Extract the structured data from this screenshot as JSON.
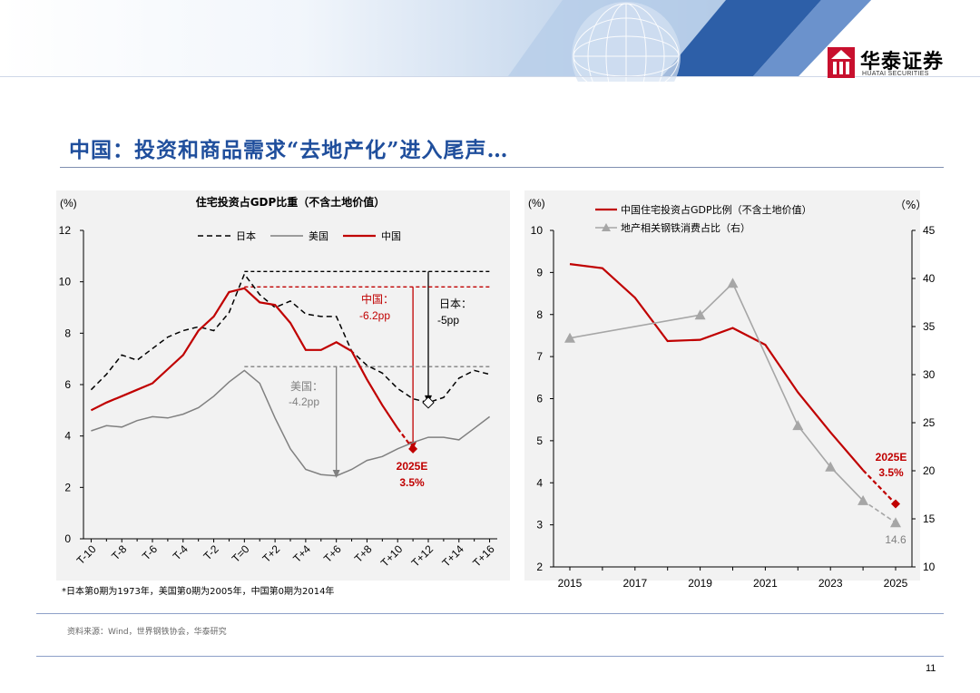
{
  "header": {
    "logo_name": "华泰证券",
    "logo_sub": "HUATAI SECURITIES",
    "brand_color": "#c8102e"
  },
  "title": "中国：投资和商品需求“去地产化”进入尾声…",
  "footnote": "*日本第0期为1973年，美国第0期为2005年，中国第0期为2014年",
  "source": "资料来源：Wind，世界钢铁协会，华泰研究",
  "page_number": "11",
  "chart_data": [
    {
      "type": "line",
      "title": "住宅投资占GDP比重（不含土地价值）",
      "ylabel": "(%)",
      "ylim": [
        0,
        12
      ],
      "yticks": [
        "0",
        "2",
        "4",
        "6",
        "8",
        "10",
        "12"
      ],
      "xticks": [
        "T-10",
        "T-8",
        "T-6",
        "T-4",
        "T-2",
        "T=0",
        "T+2",
        "T+4",
        "T+6",
        "T+8",
        "T+10",
        "T+12",
        "T+14",
        "T+16"
      ],
      "x": [
        -10,
        -9,
        -8,
        -7,
        -6,
        -5,
        -4,
        -3,
        -2,
        -1,
        0,
        1,
        2,
        3,
        4,
        5,
        6,
        7,
        8,
        9,
        10,
        11,
        12,
        13,
        14,
        15,
        16
      ],
      "legend": [
        "日本",
        "美国",
        "中国"
      ],
      "series": [
        {
          "name": "日本",
          "color": "#000000",
          "style": "dashed",
          "values": [
            5.8,
            6.4,
            7.15,
            6.95,
            7.4,
            7.85,
            8.1,
            8.25,
            8.1,
            8.8,
            10.3,
            9.5,
            9.0,
            9.25,
            8.75,
            8.65,
            8.65,
            7.3,
            6.75,
            6.45,
            5.85,
            5.45,
            5.3,
            5.5,
            6.25,
            6.55,
            6.4
          ]
        },
        {
          "name": "美国",
          "color": "#808080",
          "style": "solid",
          "values": [
            4.2,
            4.4,
            4.35,
            4.6,
            4.75,
            4.7,
            4.85,
            5.1,
            5.55,
            6.1,
            6.55,
            6.05,
            4.7,
            3.5,
            2.7,
            2.5,
            2.45,
            2.7,
            3.05,
            3.2,
            3.5,
            3.75,
            3.95,
            3.95,
            3.85,
            4.3,
            4.75
          ]
        },
        {
          "name": "中国",
          "color": "#c00000",
          "style": "solid",
          "values": [
            5.0,
            5.3,
            5.55,
            5.8,
            6.05,
            6.6,
            7.15,
            8.1,
            8.65,
            9.6,
            9.75,
            9.2,
            9.1,
            8.4,
            7.35,
            7.35,
            7.65,
            7.3,
            6.2,
            5.2,
            4.3,
            null,
            null,
            null,
            null,
            null,
            null
          ]
        }
      ],
      "forecast": {
        "from": [
          10,
          4.3
        ],
        "to": [
          11,
          3.5
        ],
        "color": "#c00000"
      },
      "reference_lines": [
        {
          "series": "日本",
          "from_x": 0,
          "peak": 10.4,
          "trough": 5.3,
          "trough_x": 12
        },
        {
          "series": "中国",
          "from_x": 0,
          "peak": 9.8,
          "trough": 3.5,
          "trough_x": 11
        },
        {
          "series": "美国",
          "from_x": 0,
          "peak": 6.7,
          "trough": 2.4,
          "trough_x": 6
        }
      ],
      "annotations": {
        "china_label": "中国：",
        "china_value": "-6.2pp",
        "japan_label": "日本：",
        "japan_value": "-5pp",
        "us_label": "美国：",
        "us_value": "-4.2pp",
        "forecast_label": "2025E",
        "forecast_value": "3.5%"
      }
    },
    {
      "type": "line",
      "ylabel_left": "(%)",
      "ylabel_right": "（%）",
      "ylim_left": [
        2,
        10
      ],
      "ylim_right": [
        10,
        45
      ],
      "yticks_left": [
        "2",
        "3",
        "4",
        "5",
        "6",
        "7",
        "8",
        "9",
        "10"
      ],
      "yticks_right": [
        "10",
        "15",
        "20",
        "25",
        "30",
        "35",
        "40",
        "45"
      ],
      "xlim": [
        2015,
        2025
      ],
      "xticks": [
        "2015",
        "2017",
        "2019",
        "2021",
        "2023",
        "2025"
      ],
      "legend": [
        "中国住宅投资占GDP比例（不含土地价值）",
        "地产相关钢铁消费占比（右）"
      ],
      "series": [
        {
          "name": "中国住宅投资占GDP比例（不含土地价值）",
          "axis": "left",
          "color": "#c00000",
          "x": [
            2015,
            2016,
            2017,
            2018,
            2019,
            2020,
            2021,
            2022,
            2023,
            2024
          ],
          "values": [
            9.2,
            9.1,
            8.4,
            7.37,
            7.4,
            7.68,
            7.28,
            6.15,
            5.2,
            4.3
          ]
        },
        {
          "name": "地产相关钢铁消费占比（右）",
          "axis": "right",
          "color": "#a6a6a6",
          "marker": "triangle",
          "x": [
            2015,
            2019,
            2020,
            2022,
            2023,
            2024
          ],
          "values": [
            33.8,
            36.2,
            39.5,
            24.7,
            20.4,
            16.9
          ]
        }
      ],
      "forecast_left": {
        "from": [
          2024,
          4.3
        ],
        "to": [
          2025,
          3.5
        ],
        "color": "#c00000"
      },
      "forecast_right": {
        "from": [
          2024,
          16.9
        ],
        "to": [
          2025,
          14.6
        ],
        "color": "#a6a6a6"
      },
      "annotations": {
        "forecast_label": "2025E",
        "forecast_value": "3.5%",
        "steel_2025": "14.6"
      }
    }
  ]
}
